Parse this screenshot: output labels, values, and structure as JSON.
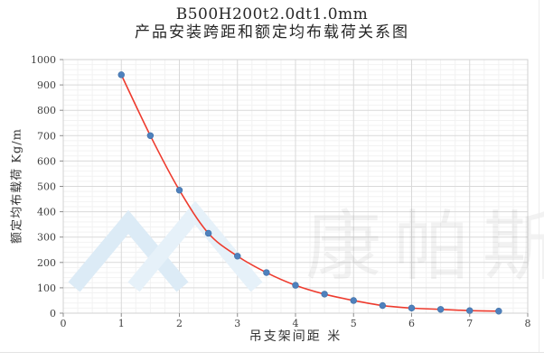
{
  "chart_data": {
    "type": "scatter",
    "title": "B500H200t2.0dt1.0mm",
    "subtitle": "产品安装跨距和额定均布载荷关系图",
    "xlabel": "吊支架间距 米",
    "ylabel": "额定均布载荷 Kg/m",
    "x": [
      1.0,
      1.5,
      2.0,
      2.5,
      3.0,
      3.5,
      4.0,
      4.5,
      5.0,
      5.5,
      6.0,
      6.5,
      7.0,
      7.5
    ],
    "values": [
      940,
      700,
      485,
      315,
      225,
      160,
      110,
      75,
      50,
      30,
      20,
      15,
      10,
      8
    ],
    "xlim": [
      0,
      8
    ],
    "ylim": [
      0,
      1000
    ],
    "x_ticks": [
      "0",
      "1",
      "2",
      "3",
      "4",
      "5",
      "6",
      "7",
      "8"
    ],
    "y_ticks": [
      "0",
      "100",
      "200",
      "300",
      "400",
      "500",
      "600",
      "700",
      "800",
      "900",
      "1000"
    ],
    "x_major_step": 1,
    "x_minor_step": 0.25,
    "y_major_step": 100,
    "y_minor_step": 20,
    "grid": "major+minor",
    "legend_position": "none",
    "trendline": "smooth red curve through points",
    "point_color": "#4f81bd",
    "line_color": "#ee3b2e"
  },
  "watermark": {
    "text": "康帕斯",
    "logo": "twin-mountain-peaks",
    "logo_color": "#ddebf6",
    "text_color_opacity": "black at ~5%"
  },
  "colors": {
    "background": "#ffffff",
    "plot_border": "#d2d2d2",
    "grid_major": "#d9d9d9",
    "grid_minor": "#f2f2f2",
    "tick_mark": "#8c8c8c",
    "text": "#333333"
  }
}
